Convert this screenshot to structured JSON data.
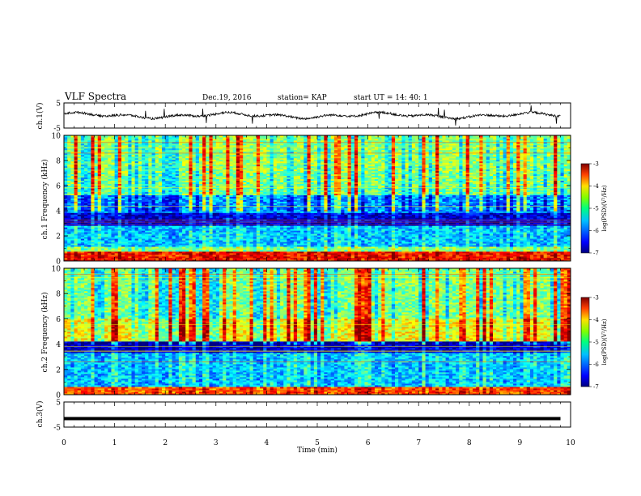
{
  "header": {
    "title": "VLF Spectra",
    "date": "Dec.19, 2016",
    "station": "station= KAP",
    "start": "start  UT =   14: 40: 1"
  },
  "chart_data": [
    {
      "type": "line",
      "ylabel": "ch.1(V)",
      "xlim": [
        0,
        10
      ],
      "ylim": [
        -5,
        5
      ],
      "yticks": [
        "5",
        "-5"
      ],
      "description_values": {
        "x_end": 9.8,
        "typical_range": [
          -1.5,
          1.5
        ]
      }
    },
    {
      "type": "heatmap",
      "ylabel": "ch.1 Frequency (kHz)",
      "xlim": [
        0,
        10
      ],
      "ylim": [
        0,
        10
      ],
      "yticks": [
        "0",
        "2",
        "4",
        "6",
        "8",
        "10"
      ],
      "colorbar": {
        "label": "log(PSD)(V²/Hz)",
        "min": -7,
        "max": -3,
        "ticks": [
          "-3",
          "-4",
          "-5",
          "-6",
          "-7"
        ]
      },
      "bands_khz": [
        {
          "range": [
            0,
            0.8
          ],
          "level": -3.5
        },
        {
          "range": [
            0.8,
            1.2
          ],
          "level": -5.0
        },
        {
          "range": [
            1.2,
            2.8
          ],
          "level": -5.7
        },
        {
          "range": [
            2.8,
            3.8
          ],
          "level": -6.6
        },
        {
          "range": [
            3.8,
            5.2
          ],
          "level": -5.9
        },
        {
          "range": [
            5.2,
            7.0
          ],
          "level": -5.0
        },
        {
          "range": [
            7.0,
            10.0
          ],
          "level": -4.9
        }
      ]
    },
    {
      "type": "heatmap",
      "ylabel": "ch.2 Frequency (kHz)",
      "xlim": [
        0,
        10
      ],
      "ylim": [
        0,
        10
      ],
      "yticks": [
        "0",
        "2",
        "4",
        "6",
        "8",
        "10"
      ],
      "colorbar": {
        "label": "log(PSD)(V²/Hz)",
        "min": -7,
        "max": -3,
        "ticks": [
          "-3",
          "-4",
          "-5",
          "-6",
          "-7"
        ]
      },
      "bands_khz": [
        {
          "range": [
            0,
            0.6
          ],
          "level": -3.8
        },
        {
          "range": [
            0.6,
            3.3
          ],
          "level": -5.7
        },
        {
          "range": [
            3.3,
            4.2
          ],
          "level": -6.7
        },
        {
          "range": [
            4.2,
            6.0
          ],
          "level": -4.5
        },
        {
          "range": [
            6.0,
            10.0
          ],
          "level": -5.0
        }
      ]
    },
    {
      "type": "line",
      "ylabel": "ch.3(V)",
      "xlabel": "Time (min)",
      "xlim": [
        0,
        10
      ],
      "ylim": [
        -5,
        5
      ],
      "yticks": [
        "5",
        "-5"
      ],
      "xticks": [
        "0",
        "1",
        "2",
        "3",
        "4",
        "5",
        "6",
        "7",
        "8",
        "9",
        "10"
      ],
      "values": [
        [
          0,
          -1.6
        ],
        [
          9.8,
          -1.6
        ]
      ]
    }
  ],
  "colors": {
    "spectrum_high": "#ff0000",
    "spectrum_mid": "#00ff00",
    "spectrum_low": "#0000ff",
    "spectrum_floor": "#000080"
  }
}
